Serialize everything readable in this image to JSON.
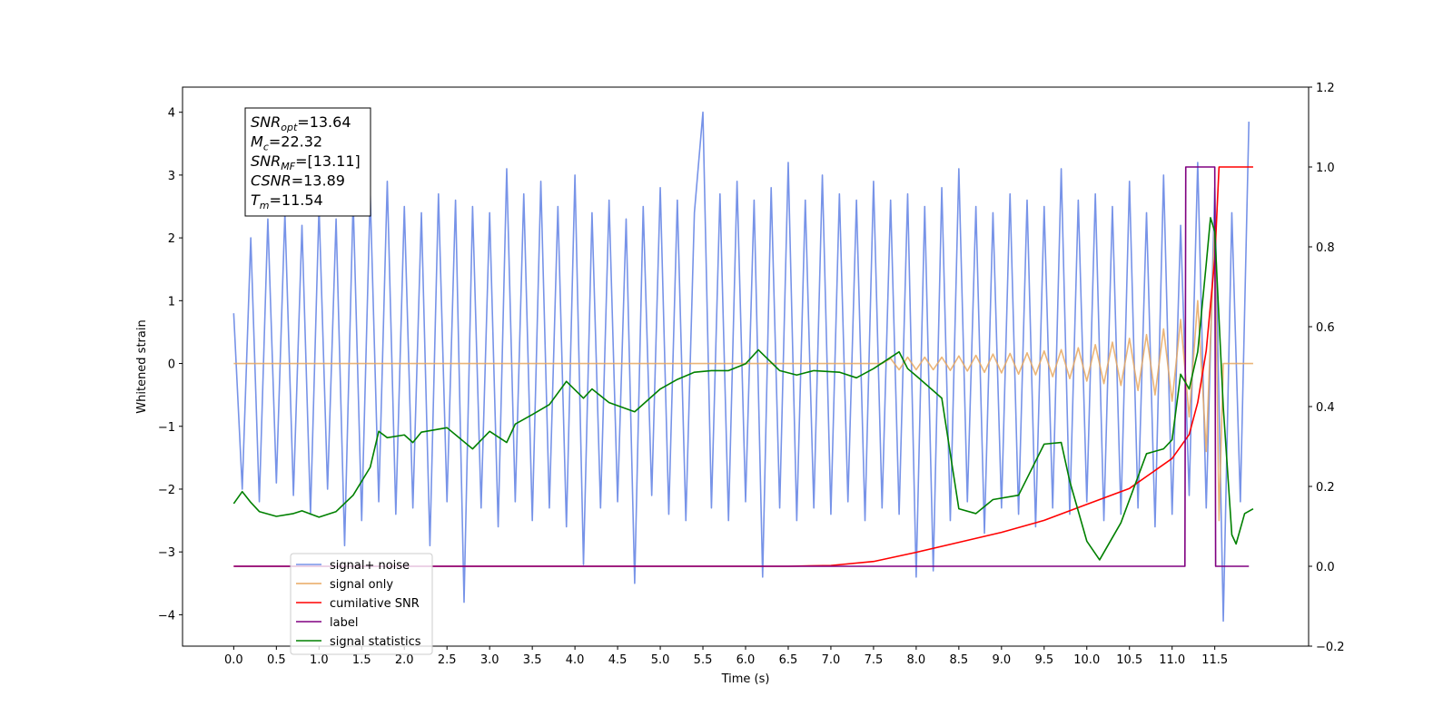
{
  "chart_data": {
    "type": "line",
    "xlabel": "Time (s)",
    "ylabel": "Whitened strain",
    "xlim": [
      -0.6,
      12.6
    ],
    "ylim": [
      -4.5,
      4.4
    ],
    "y2lim": [
      -0.2,
      1.2
    ],
    "xticks": [
      {
        "value": 0,
        "label": "0.0"
      },
      0.5,
      {
        "value": 1,
        "label": "1.0"
      },
      1.5,
      {
        "value": 2,
        "label": "2.0"
      },
      2.5,
      {
        "value": 3,
        "label": "3.0"
      },
      3.5,
      {
        "value": 4,
        "label": "4.0"
      },
      4.5,
      {
        "value": 5,
        "label": "5.0"
      },
      5.5,
      {
        "value": 6,
        "label": "6.0"
      },
      6.5,
      {
        "value": 7,
        "label": "7.0"
      },
      7.5,
      {
        "value": 8,
        "label": "8.0"
      },
      8.5,
      {
        "value": 9,
        "label": "9.0"
      },
      9.5,
      {
        "value": 10,
        "label": "10.0"
      },
      10.5,
      {
        "value": 11,
        "label": "11.0"
      },
      11.5
    ],
    "yticks": [
      {
        "value": -4,
        "label": "−4"
      },
      {
        "value": -3,
        "label": "−3"
      },
      {
        "value": -2,
        "label": "−2"
      },
      {
        "value": -1,
        "label": "−1"
      },
      0,
      1,
      2,
      3,
      4
    ],
    "y2ticks": [
      {
        "value": -0.2,
        "label": "−0.2"
      },
      {
        "value": 0,
        "label": "0.0"
      },
      0.2,
      0.4,
      0.6,
      0.8,
      {
        "value": 1,
        "label": "1.0"
      },
      1.2
    ],
    "legend_loc": "lower left",
    "stats_box": [
      {
        "symbol": "SNR",
        "sub": "opt",
        "text": "=13.64"
      },
      {
        "symbol": "M",
        "sub": "c",
        "text": "=22.32"
      },
      {
        "symbol": "SNR",
        "sub": "MF",
        "text": "=[13.11]"
      },
      {
        "symbol": "CSNR",
        "text": "=13.89"
      },
      {
        "symbol": "T",
        "sub": "m",
        "text": "=11.54"
      }
    ],
    "series": [
      {
        "name": "signal+ noise",
        "color": "#7793e8",
        "x": [
          0,
          0.1,
          0.2,
          0.3,
          0.4,
          0.5,
          0.6,
          0.7,
          0.8,
          0.9,
          1,
          1.1,
          1.2,
          1.3,
          1.4,
          1.5,
          1.6,
          1.7,
          1.8,
          1.9,
          2,
          2.1,
          2.2,
          2.3,
          2.4,
          2.5,
          2.6,
          2.7,
          2.8,
          2.9,
          3,
          3.1,
          3.2,
          3.3,
          3.4,
          3.5,
          3.6,
          3.7,
          3.8,
          3.9,
          4,
          4.1,
          4.2,
          4.3,
          4.4,
          4.5,
          4.6,
          4.7,
          4.8,
          4.9,
          5,
          5.1,
          5.2,
          5.3,
          5.4,
          5.5,
          5.6,
          5.7,
          5.8,
          5.9,
          6,
          6.1,
          6.2,
          6.3,
          6.4,
          6.5,
          6.6,
          6.7,
          6.8,
          6.9,
          7,
          7.1,
          7.2,
          7.3,
          7.4,
          7.5,
          7.6,
          7.7,
          7.8,
          7.9,
          8,
          8.1,
          8.2,
          8.3,
          8.4,
          8.5,
          8.6,
          8.7,
          8.8,
          8.9,
          9,
          9.1,
          9.2,
          9.3,
          9.4,
          9.5,
          9.6,
          9.7,
          9.8,
          9.9,
          10,
          10.1,
          10.2,
          10.3,
          10.4,
          10.5,
          10.6,
          10.7,
          10.8,
          10.9,
          11,
          11.1,
          11.2,
          11.3,
          11.4,
          11.5,
          11.6,
          11.7,
          11.8,
          11.9
        ],
        "values": [
          0.8,
          -2.0,
          2.0,
          -2.2,
          2.3,
          -1.9,
          2.4,
          -2.1,
          2.2,
          -2.4,
          2.5,
          -2.0,
          2.3,
          -2.9,
          2.6,
          -2.5,
          2.7,
          -2.2,
          2.9,
          -2.4,
          2.5,
          -2.3,
          2.4,
          -2.9,
          2.7,
          -2.2,
          2.6,
          -3.8,
          2.5,
          -2.3,
          2.4,
          -2.6,
          3.1,
          -2.2,
          2.7,
          -2.5,
          2.9,
          -2.3,
          2.5,
          -2.6,
          3.0,
          -3.2,
          2.4,
          -2.3,
          2.6,
          -2.2,
          2.3,
          -3.5,
          2.5,
          -2.1,
          2.8,
          -2.4,
          2.6,
          -2.5,
          2.4,
          4.0,
          -2.3,
          2.7,
          -2.5,
          2.9,
          -2.2,
          2.6,
          -3.4,
          2.8,
          -2.3,
          3.2,
          -2.5,
          2.6,
          -2.3,
          3.0,
          -2.4,
          2.7,
          -2.2,
          2.6,
          -2.5,
          2.9,
          -2.3,
          2.6,
          -2.4,
          2.7,
          -3.4,
          2.5,
          -3.3,
          2.8,
          -2.5,
          3.1,
          -2.2,
          2.5,
          -2.7,
          2.4,
          -2.3,
          2.7,
          -2.4,
          2.6,
          -2.6,
          2.5,
          -2.3,
          3.1,
          -2.4,
          2.6,
          -2.2,
          2.7,
          -2.5,
          2.5,
          -2.4,
          2.9,
          -2.3,
          2.4,
          -2.6,
          3.0,
          -2.4,
          2.2,
          -2.1,
          3.2,
          -2.3,
          2.8,
          -4.1,
          2.4,
          -2.2,
          3.85
        ]
      },
      {
        "name": "signal only",
        "color": "#e8a860",
        "x": [
          0,
          7.6,
          7.7,
          7.8,
          7.9,
          8,
          8.1,
          8.2,
          8.3,
          8.4,
          8.5,
          8.6,
          8.7,
          8.8,
          8.9,
          9,
          9.1,
          9.2,
          9.3,
          9.4,
          9.5,
          9.6,
          9.7,
          9.8,
          9.9,
          10,
          10.1,
          10.2,
          10.3,
          10.4,
          10.5,
          10.6,
          10.7,
          10.8,
          10.9,
          11,
          11.1,
          11.2,
          11.3,
          11.4,
          11.5,
          11.55,
          11.6,
          11.95
        ],
        "values": [
          0,
          0,
          0.08,
          -0.1,
          0.1,
          -0.1,
          0.1,
          -0.1,
          0.1,
          -0.11,
          0.12,
          -0.12,
          0.13,
          -0.14,
          0.15,
          -0.15,
          0.16,
          -0.17,
          0.17,
          -0.18,
          0.2,
          -0.21,
          0.22,
          -0.24,
          0.25,
          -0.28,
          0.3,
          -0.32,
          0.34,
          -0.35,
          0.4,
          -0.43,
          0.46,
          -0.5,
          0.55,
          -0.6,
          0.7,
          -0.85,
          1.0,
          -1.4,
          2.2,
          -2.5,
          0,
          0
        ]
      },
      {
        "name": "cumilative SNR",
        "color": "#ff0000",
        "axis": "y2",
        "x": [
          0,
          6.5,
          7,
          7.5,
          8,
          8.5,
          9,
          9.5,
          10,
          10.5,
          11,
          11.2,
          11.3,
          11.4,
          11.5,
          11.55,
          11.95
        ],
        "values": [
          0,
          0,
          0.002,
          0.012,
          0.035,
          0.06,
          0.085,
          0.115,
          0.155,
          0.195,
          0.27,
          0.33,
          0.41,
          0.54,
          0.77,
          1.0,
          1.0
        ]
      },
      {
        "name": "label",
        "color": "#800080",
        "axis": "y2",
        "x": [
          0,
          11.15,
          11.16,
          11.5,
          11.51,
          11.9
        ],
        "values": [
          0,
          0,
          1,
          1,
          0,
          0
        ]
      },
      {
        "name": "signal statistics",
        "color": "#008000",
        "axis": "y2",
        "x": [
          0,
          0.1,
          0.2,
          0.3,
          0.5,
          0.7,
          0.8,
          1,
          1.2,
          1.4,
          1.6,
          1.7,
          1.8,
          2,
          2.1,
          2.2,
          2.5,
          2.8,
          3,
          3.2,
          3.3,
          3.5,
          3.7,
          3.9,
          4.1,
          4.2,
          4.4,
          4.7,
          5,
          5.2,
          5.4,
          5.6,
          5.8,
          6,
          6.15,
          6.4,
          6.6,
          6.8,
          7.1,
          7.3,
          7.5,
          7.8,
          7.9,
          8,
          8.3,
          8.4,
          8.5,
          8.7,
          8.9,
          9.2,
          9.5,
          9.7,
          9.8,
          10,
          10.15,
          10.4,
          10.7,
          10.9,
          11,
          11.1,
          11.2,
          11.3,
          11.4,
          11.45,
          11.5,
          11.6,
          11.7,
          11.75,
          11.85,
          11.95
        ],
        "values": [
          0.157,
          0.187,
          0.16,
          0.137,
          0.125,
          0.132,
          0.139,
          0.123,
          0.137,
          0.178,
          0.248,
          0.338,
          0.322,
          0.329,
          0.31,
          0.336,
          0.347,
          0.294,
          0.338,
          0.31,
          0.356,
          0.38,
          0.405,
          0.463,
          0.421,
          0.444,
          0.41,
          0.387,
          0.444,
          0.468,
          0.486,
          0.49,
          0.49,
          0.507,
          0.542,
          0.49,
          0.479,
          0.49,
          0.486,
          0.472,
          0.495,
          0.537,
          0.495,
          0.477,
          0.421,
          0.282,
          0.144,
          0.132,
          0.167,
          0.178,
          0.306,
          0.31,
          0.213,
          0.063,
          0.016,
          0.109,
          0.282,
          0.294,
          0.317,
          0.481,
          0.444,
          0.537,
          0.757,
          0.873,
          0.838,
          0.398,
          0.079,
          0.056,
          0.132,
          0.144
        ]
      }
    ]
  }
}
